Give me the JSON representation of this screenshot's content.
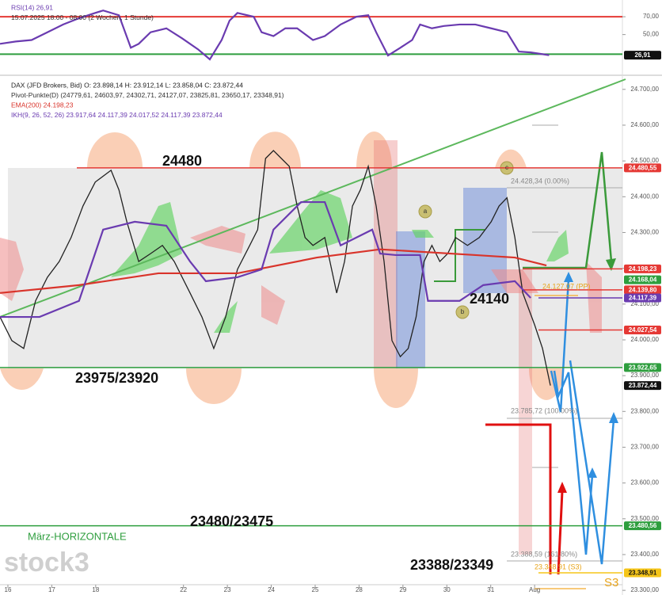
{
  "chart_data": [
    {
      "type": "line",
      "title": "RSI(14) 26,91",
      "subtitle": "15.07.2025 18:00 - 08:00 (2 Wochen, 1 Stunde)",
      "xlim": [
        -0.18,
        14.0
      ],
      "ylim": [
        7,
        87
      ],
      "yticks": [
        {
          "value": 70,
          "label": "70,00"
        },
        {
          "value": 50,
          "label": "50,00"
        }
      ],
      "hlines": [
        {
          "value": 70,
          "color": "#e53935"
        },
        {
          "value": 28,
          "color": "#2e9e3e"
        }
      ],
      "series": [
        {
          "name": "RSI(14)",
          "color": "#6a3bb0",
          "x": [
            -0.18,
            0.18,
            0.54,
            0.9,
            1.26,
            1.62,
            1.99,
            2.17,
            2.53,
            2.8,
            2.98,
            3.25,
            3.61,
            3.97,
            4.33,
            4.6,
            4.87,
            5.05,
            5.23,
            5.6,
            5.78,
            6.05,
            6.32,
            6.59,
            6.95,
            7.22,
            7.58,
            7.94,
            8.21,
            8.39,
            8.66,
            8.94,
            9.21,
            9.39,
            9.66,
            9.93,
            10.29,
            10.65,
            11.01,
            11.37,
            11.64,
            11.91,
            12.33
          ],
          "values": [
            39.6,
            42.2,
            43.9,
            52.6,
            61.3,
            68.3,
            74.3,
            77,
            71.7,
            35.2,
            39.6,
            52.6,
            57,
            45.7,
            33.5,
            22.2,
            43.9,
            65.7,
            74.3,
            70,
            52.6,
            48.3,
            57,
            57,
            43.9,
            48.3,
            61.3,
            70,
            71.7,
            52.6,
            26.5,
            35.2,
            43.9,
            61.3,
            57,
            59.6,
            61.3,
            61.3,
            57,
            52.6,
            30.9,
            30,
            26.91
          ]
        }
      ],
      "levels": [
        {
          "value": 26.91,
          "label": "26,91",
          "color": "#111111",
          "text_color": "#ffffff"
        }
      ]
    },
    {
      "type": "line",
      "xlim": [
        -0.18,
        14.0
      ],
      "ylim": [
        23287,
        24735
      ],
      "xticks": [
        {
          "value": 0,
          "label": "16"
        },
        {
          "value": 1,
          "label": "17"
        },
        {
          "value": 2,
          "label": "18"
        },
        {
          "value": 4,
          "label": "22"
        },
        {
          "value": 5,
          "label": "23"
        },
        {
          "value": 6,
          "label": "24"
        },
        {
          "value": 7,
          "label": "25"
        },
        {
          "value": 8,
          "label": "28"
        },
        {
          "value": 9,
          "label": "29"
        },
        {
          "value": 10,
          "label": "30"
        },
        {
          "value": 11,
          "label": "31"
        },
        {
          "value": 12,
          "label": "Aug"
        }
      ],
      "yticks": [
        {
          "value": 23300,
          "label": "23.300,00"
        },
        {
          "value": 23400,
          "label": "23.400,00"
        },
        {
          "value": 23500,
          "label": "23.500,00"
        },
        {
          "value": 23600,
          "label": "23.600,00"
        },
        {
          "value": 23700,
          "label": "23.700,00"
        },
        {
          "value": 23800,
          "label": "23.800,00"
        },
        {
          "value": 23900,
          "label": "23.900,00"
        },
        {
          "value": 24000,
          "label": "24.000,00"
        },
        {
          "value": 24100,
          "label": "24.100,00"
        },
        {
          "value": 24200,
          "label": "24.200,00"
        },
        {
          "value": 24300,
          "label": "24.300,00"
        },
        {
          "value": 24400,
          "label": "24.400,00"
        },
        {
          "value": 24500,
          "label": "24.500,00"
        },
        {
          "value": 24600,
          "label": "24.600,00"
        },
        {
          "value": 24700,
          "label": "24.700,00"
        }
      ],
      "pivot_label": "Pivot-Punkte(D) (24779,61, 24603,97, 24302,71, 24127,07, 23825,81, 23650,17, 23348,91)",
      "series": [
        {
          "name": "DAX (JFD Brokers, Bid)  O: 23.898,14  H: 23.912,14  L: 23.858,04  C: 23.872,44",
          "color": "#222222",
          "x": [
            -0.18,
            0.09,
            0.36,
            0.63,
            0.9,
            1.17,
            1.44,
            1.71,
            1.99,
            2.35,
            2.53,
            2.71,
            2.98,
            3.25,
            3.52,
            3.79,
            4.15,
            4.42,
            4.69,
            4.96,
            5.23,
            5.51,
            5.69,
            5.87,
            6.05,
            6.23,
            6.41,
            6.59,
            6.77,
            6.95,
            7.22,
            7.49,
            7.67,
            7.85,
            8.03,
            8.21,
            8.39,
            8.57,
            8.75,
            8.94,
            9.12,
            9.3,
            9.48,
            9.66,
            9.84,
            10.02,
            10.2,
            10.47,
            10.74,
            11.01,
            11.19,
            11.37,
            11.55,
            11.73,
            12.0,
            12.18,
            12.36
          ],
          "values": [
            24064,
            23998,
            23976,
            24109,
            24175,
            24219,
            24286,
            24374,
            24441,
            24474,
            24419,
            24330,
            24219,
            24241,
            24264,
            24219,
            24131,
            24064,
            23976,
            24064,
            24197,
            24264,
            24308,
            24507,
            24529,
            24507,
            24485,
            24374,
            24286,
            24264,
            24286,
            24131,
            24219,
            24374,
            24419,
            24485,
            24374,
            24219,
            23998,
            23953,
            23976,
            24064,
            24219,
            24264,
            24219,
            24241,
            24286,
            24264,
            24286,
            24330,
            24374,
            24397,
            24286,
            24131,
            24042,
            23976,
            23872.44
          ]
        },
        {
          "name": "EMA(200) 24.198,23",
          "color": "#d9342b",
          "x": [
            -0.18,
            1.62,
            3.43,
            5.23,
            7.04,
            8.48,
            10.65,
            11.55,
            12.27
          ],
          "values": [
            24131,
            24153,
            24186,
            24186,
            24230,
            24253,
            24237,
            24230,
            24208
          ]
        },
        {
          "name": "IKH(9, 26, 52, 26) 23.917,64 24.117,39 24.017,52 24.117,39 23.872,44",
          "color": "#6a3bb0",
          "x": [
            -0.18,
            0.72,
            1.62,
            2.17,
            2.89,
            3.61,
            4.15,
            4.51,
            5.23,
            5.78,
            6.05,
            6.68,
            7.22,
            7.58,
            8.3,
            8.48,
            8.84,
            9.39,
            9.57,
            10.29,
            10.83,
            11.55,
            11.91
          ],
          "values": [
            24064,
            24064,
            24109,
            24308,
            24330,
            24319,
            24219,
            24164,
            24175,
            24197,
            24308,
            24385,
            24385,
            24264,
            24308,
            24241,
            24237,
            24237,
            24109,
            24109,
            24153,
            24164,
            24117.39
          ]
        }
      ],
      "levels": [
        {
          "value": 24480.55,
          "label": "24.480,55",
          "color": "#e53935",
          "text_color": "#ffffff"
        },
        {
          "value": 24198.23,
          "label": "24.198,23",
          "color": "#e53935",
          "text_color": "#ffffff"
        },
        {
          "value": 24168.04,
          "label": "24.168,04",
          "color": "#2e9e3e",
          "text_color": "#ffffff"
        },
        {
          "value": 24139.8,
          "label": "24.139,80",
          "color": "#e53935",
          "text_color": "#ffffff"
        },
        {
          "value": 24117.39,
          "label": "24.117,39",
          "color": "#6a3bb0",
          "text_color": "#ffffff"
        },
        {
          "value": 24027.54,
          "label": "24.027,54",
          "color": "#e53935",
          "text_color": "#ffffff"
        },
        {
          "value": 23922.65,
          "label": "23.922,65",
          "color": "#2e9e3e",
          "text_color": "#ffffff"
        },
        {
          "value": 23872.44,
          "label": "23.872,44",
          "color": "#111111",
          "text_color": "#ffffff"
        },
        {
          "value": 23480.56,
          "label": "23.480,56",
          "color": "#2e9e3e",
          "text_color": "#ffffff"
        },
        {
          "value": 23348.91,
          "label": "23.348,91",
          "color": "#f5c518",
          "text_color": "#111111"
        }
      ],
      "annotations": [
        "24480",
        "24140",
        "23975/23920",
        "23480/23475",
        "23388/23349",
        "März-HORIZONTALE",
        "S3",
        "24.428,34 (0.00%)",
        "23.785,72 (100.00%)",
        "23.388,59 (161.80%)",
        "23.348,91 (S3)",
        "24.127,07 (PP)",
        "a",
        "b",
        "c"
      ],
      "watermark": "stock3"
    }
  ]
}
